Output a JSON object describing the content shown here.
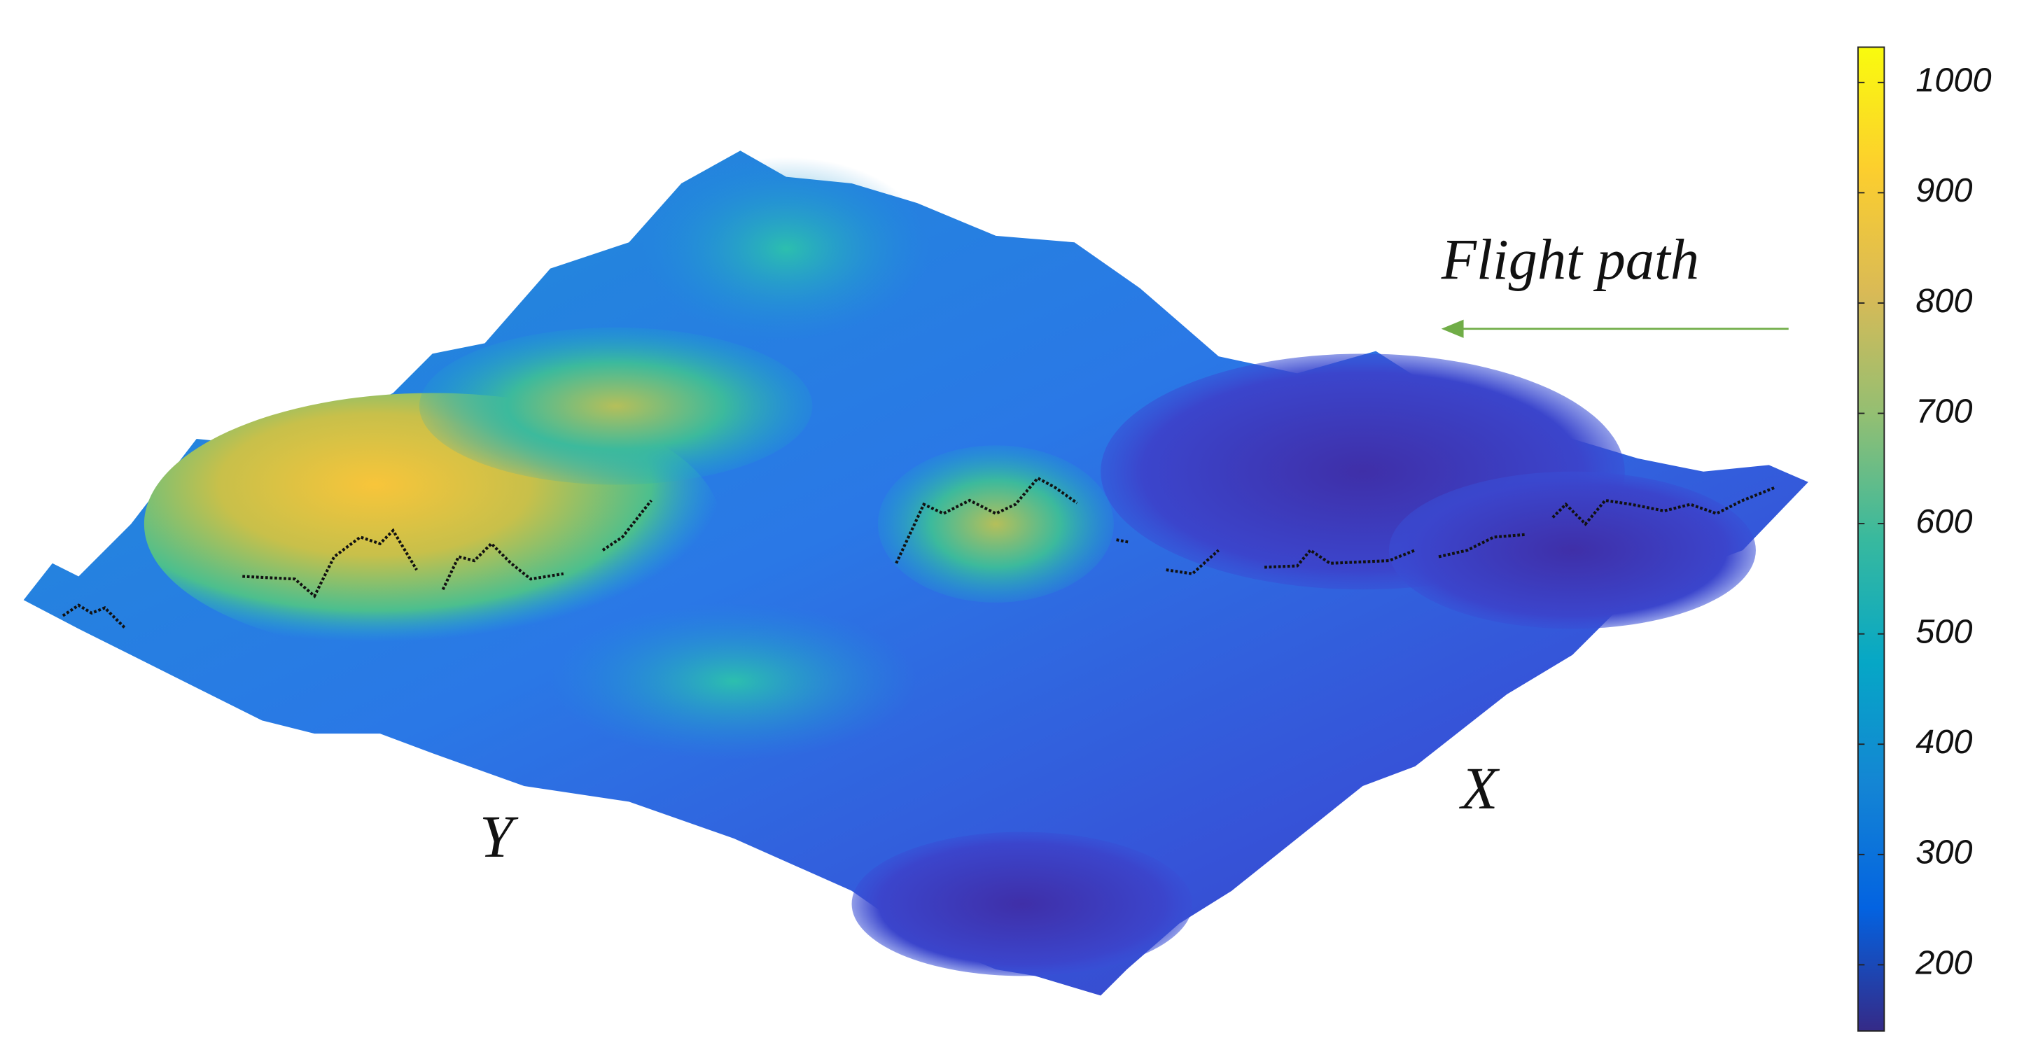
{
  "chart_data": {
    "type": "surface",
    "colormap": "parula",
    "annotations": [
      "Flight path",
      "X",
      "Y"
    ],
    "clim": [
      140,
      1032
    ],
    "cticks": [
      200,
      300,
      400,
      500,
      600,
      700,
      800,
      900,
      1000
    ],
    "arrow_color": "#70ad47"
  }
}
